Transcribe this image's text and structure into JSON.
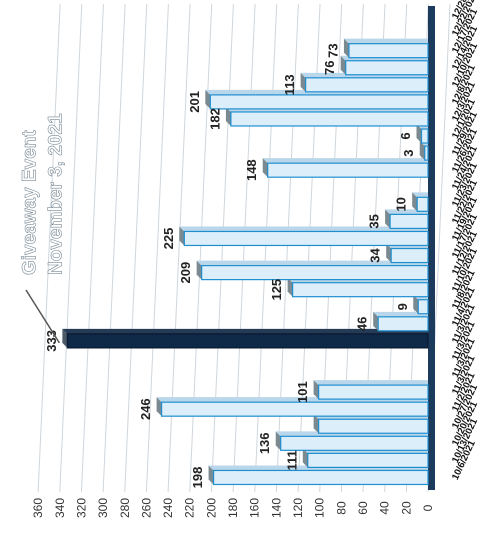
{
  "chart_data": {
    "type": "bar",
    "orientation": "horizontal",
    "annotation": {
      "lines": [
        "Giveaway Event",
        "November 3, 2021"
      ],
      "target_index": 8
    },
    "categories": [
      "10/6/2021",
      "10/13/2021",
      "10/20/2021",
      "10/27/2021",
      "11/2/2021",
      "11/3/2021",
      "11/3/2021",
      "11/3/2021",
      "11/3/2021",
      "11/4/2021",
      "11/8/2021",
      "11/10/2021",
      "11/12/2021",
      "11/17/2021",
      "11/19/2021",
      "11/22/2021",
      "11/23/2021",
      "11/24/2021",
      "11/26/2021",
      "11/29/2021",
      "12/1/2021",
      "12/3/2021",
      "12/8/2021",
      "12/10/2021",
      "12/14/2021",
      "12/17/2021",
      "12/22/2021",
      "12/28/2021"
    ],
    "series": [
      {
        "values": [
          198,
          111,
          136,
          101,
          246,
          101,
          0,
          0,
          333,
          46,
          9,
          125,
          209,
          34,
          225,
          35,
          10,
          0,
          148,
          3,
          6,
          182,
          201,
          113,
          76,
          73,
          0,
          0
        ]
      }
    ],
    "value_labels": [
      "198",
      "111",
      "136",
      "",
      "246",
      "101",
      "",
      "",
      "333",
      "46",
      "9",
      "125",
      "209",
      "34",
      "225",
      "35",
      "10",
      "",
      "148",
      "3",
      "6",
      "182",
      "201",
      "113",
      "76",
      "73",
      "",
      ""
    ],
    "highlight_index": 8,
    "ylim": [
      0,
      360
    ],
    "yticks": [
      0,
      20,
      40,
      60,
      80,
      100,
      120,
      140,
      160,
      180,
      200,
      220,
      240,
      260,
      280,
      300,
      320,
      340,
      360
    ],
    "grid": true,
    "legend": "none",
    "colors": {
      "bar": "#dceefa",
      "bar_edge": "#1f8fd0",
      "bar_top": "#7a8a90",
      "highlight": "#0f2a48",
      "grid": "#cfd6dc",
      "axis": "#1b3a5c"
    }
  }
}
